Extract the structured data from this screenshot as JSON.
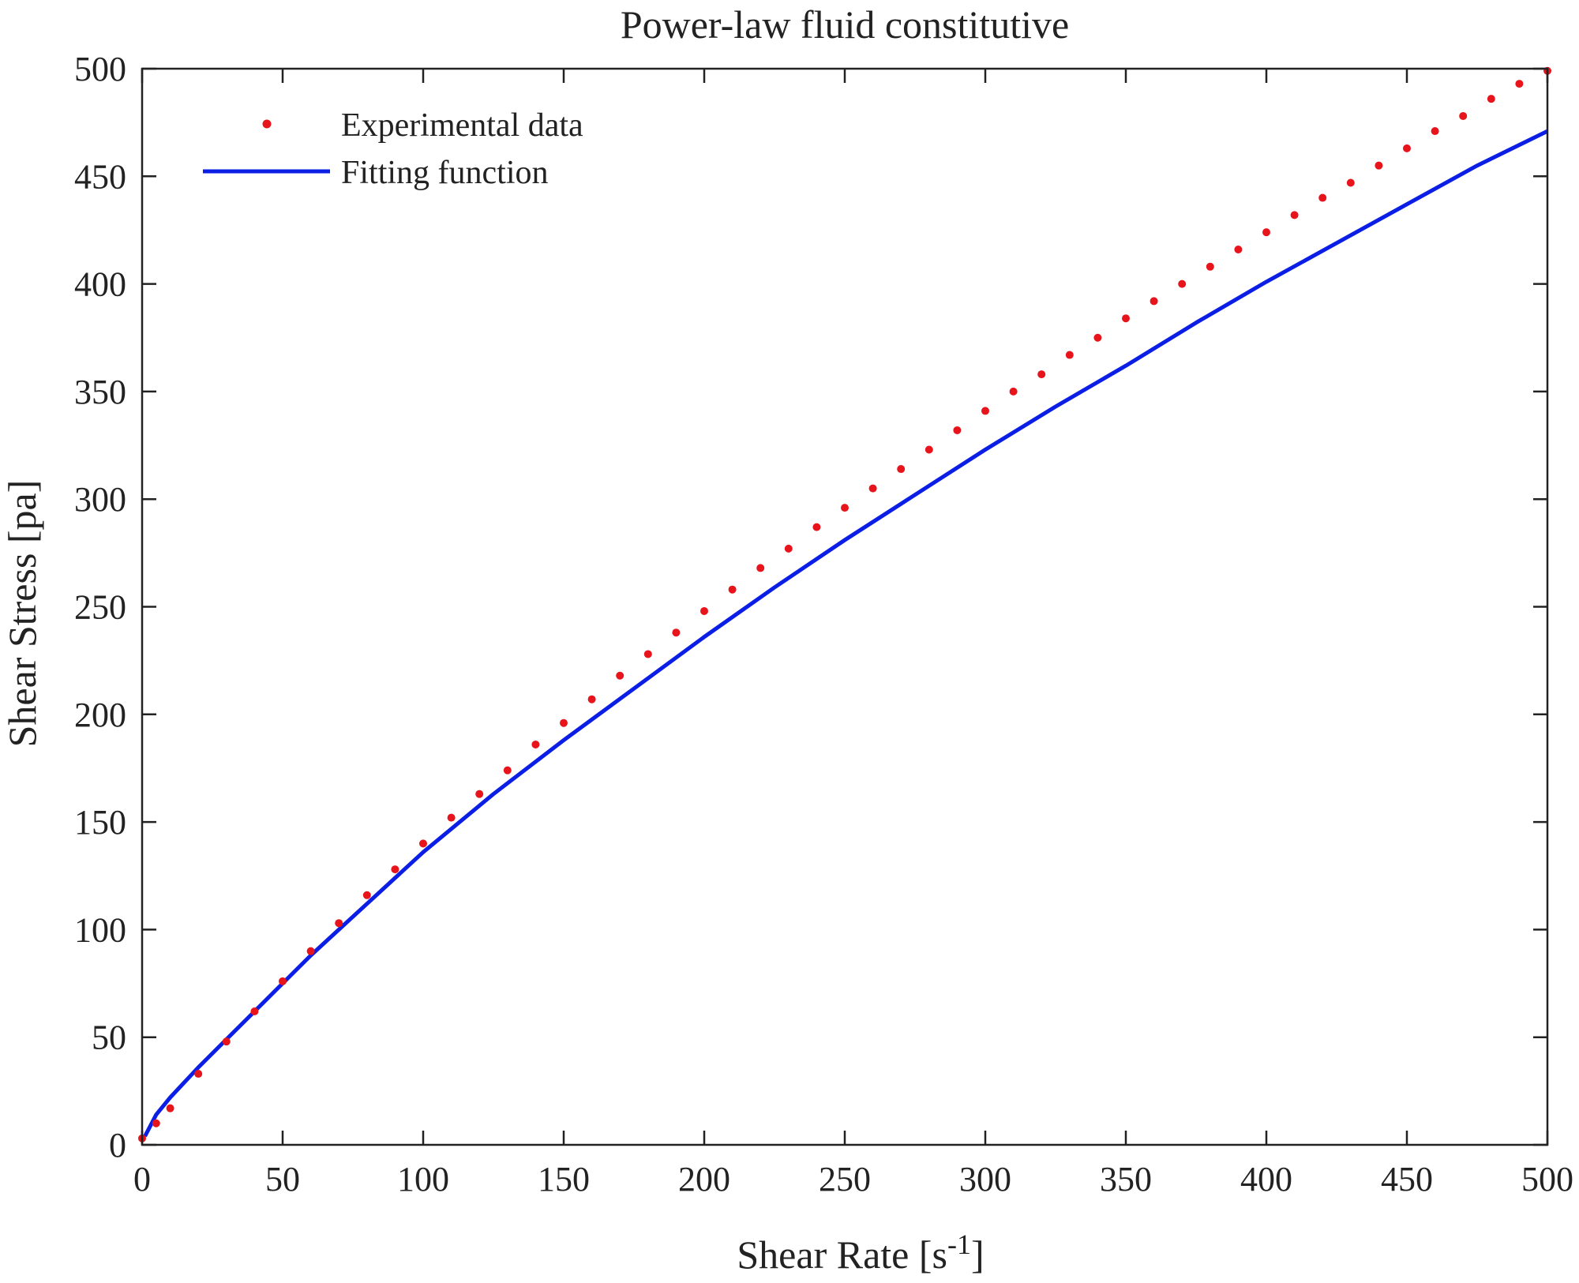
{
  "chart_data": {
    "type": "line",
    "title": "Power-law fluid constitutive",
    "xlabel": "Shear Rate [s",
    "xlabel_superscript": "-1",
    "xlabel_suffix": "]",
    "ylabel": "Shear Stress [pa]",
    "xlim": [
      0,
      500
    ],
    "ylim": [
      0,
      500
    ],
    "xticks": [
      0,
      50,
      100,
      150,
      200,
      250,
      300,
      350,
      400,
      450,
      500
    ],
    "yticks": [
      0,
      50,
      100,
      150,
      200,
      250,
      300,
      350,
      400,
      450,
      500
    ],
    "grid": false,
    "legend_position": "top-left",
    "series": [
      {
        "name": "Experimental data",
        "style": "dots",
        "color": "#e8141c",
        "x": [
          0,
          5,
          10,
          20,
          30,
          40,
          50,
          60,
          70,
          80,
          90,
          100,
          110,
          120,
          130,
          140,
          150,
          160,
          170,
          180,
          190,
          200,
          210,
          220,
          230,
          240,
          250,
          260,
          270,
          280,
          290,
          300,
          310,
          320,
          330,
          340,
          350,
          360,
          370,
          380,
          390,
          400,
          410,
          420,
          430,
          440,
          450,
          460,
          470,
          480,
          490,
          500
        ],
        "y": [
          3,
          10,
          17,
          33,
          48,
          62,
          76,
          90,
          103,
          116,
          128,
          140,
          152,
          163,
          174,
          186,
          196,
          207,
          218,
          228,
          238,
          248,
          258,
          268,
          277,
          287,
          296,
          305,
          314,
          323,
          332,
          341,
          350,
          358,
          367,
          375,
          384,
          392,
          400,
          408,
          416,
          424,
          432,
          440,
          447,
          455,
          463,
          471,
          478,
          486,
          493,
          499
        ]
      },
      {
        "name": "Fitting function",
        "style": "line",
        "color": "#0a1ee6",
        "x": [
          1,
          5,
          10,
          20,
          30,
          40,
          50,
          60,
          70,
          80,
          90,
          100,
          125,
          150,
          175,
          200,
          225,
          250,
          275,
          300,
          325,
          350,
          375,
          400,
          425,
          450,
          475,
          500
        ],
        "y": [
          4,
          14,
          22,
          36,
          49,
          62,
          75,
          88,
          100,
          112,
          124,
          136,
          163,
          188,
          212,
          236,
          259,
          281,
          302,
          323,
          343,
          362,
          382,
          401,
          419,
          437,
          455,
          471
        ]
      }
    ]
  }
}
